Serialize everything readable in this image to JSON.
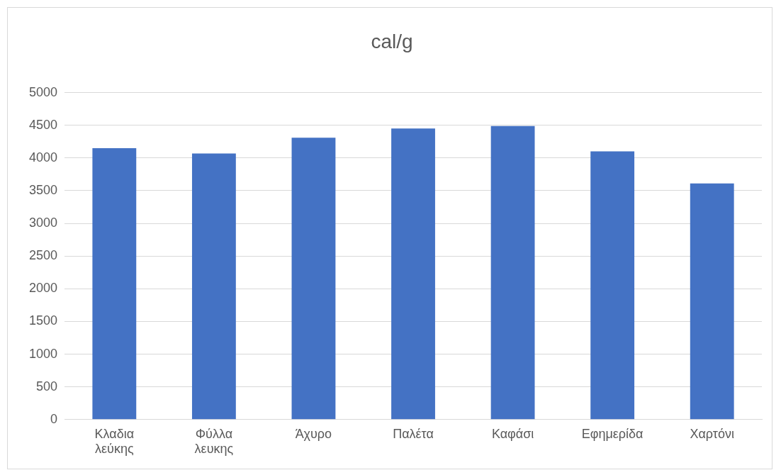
{
  "chart_data": {
    "type": "bar",
    "title": "cal/g",
    "categories": [
      "Κλαδια λεύκης",
      "Φύλλα λευκης",
      "Άχυρο",
      "Παλέτα",
      "Καφάσι",
      "Εφημερίδα",
      "Χαρτόνι"
    ],
    "values": [
      4150,
      4070,
      4310,
      4450,
      4490,
      4100,
      3610
    ],
    "color": "#4472c4",
    "ylim": [
      0,
      5000
    ],
    "yticks": [
      0,
      500,
      1000,
      1500,
      2000,
      2500,
      3000,
      3500,
      4000,
      4500,
      5000
    ],
    "grid": "y",
    "legend": false
  }
}
